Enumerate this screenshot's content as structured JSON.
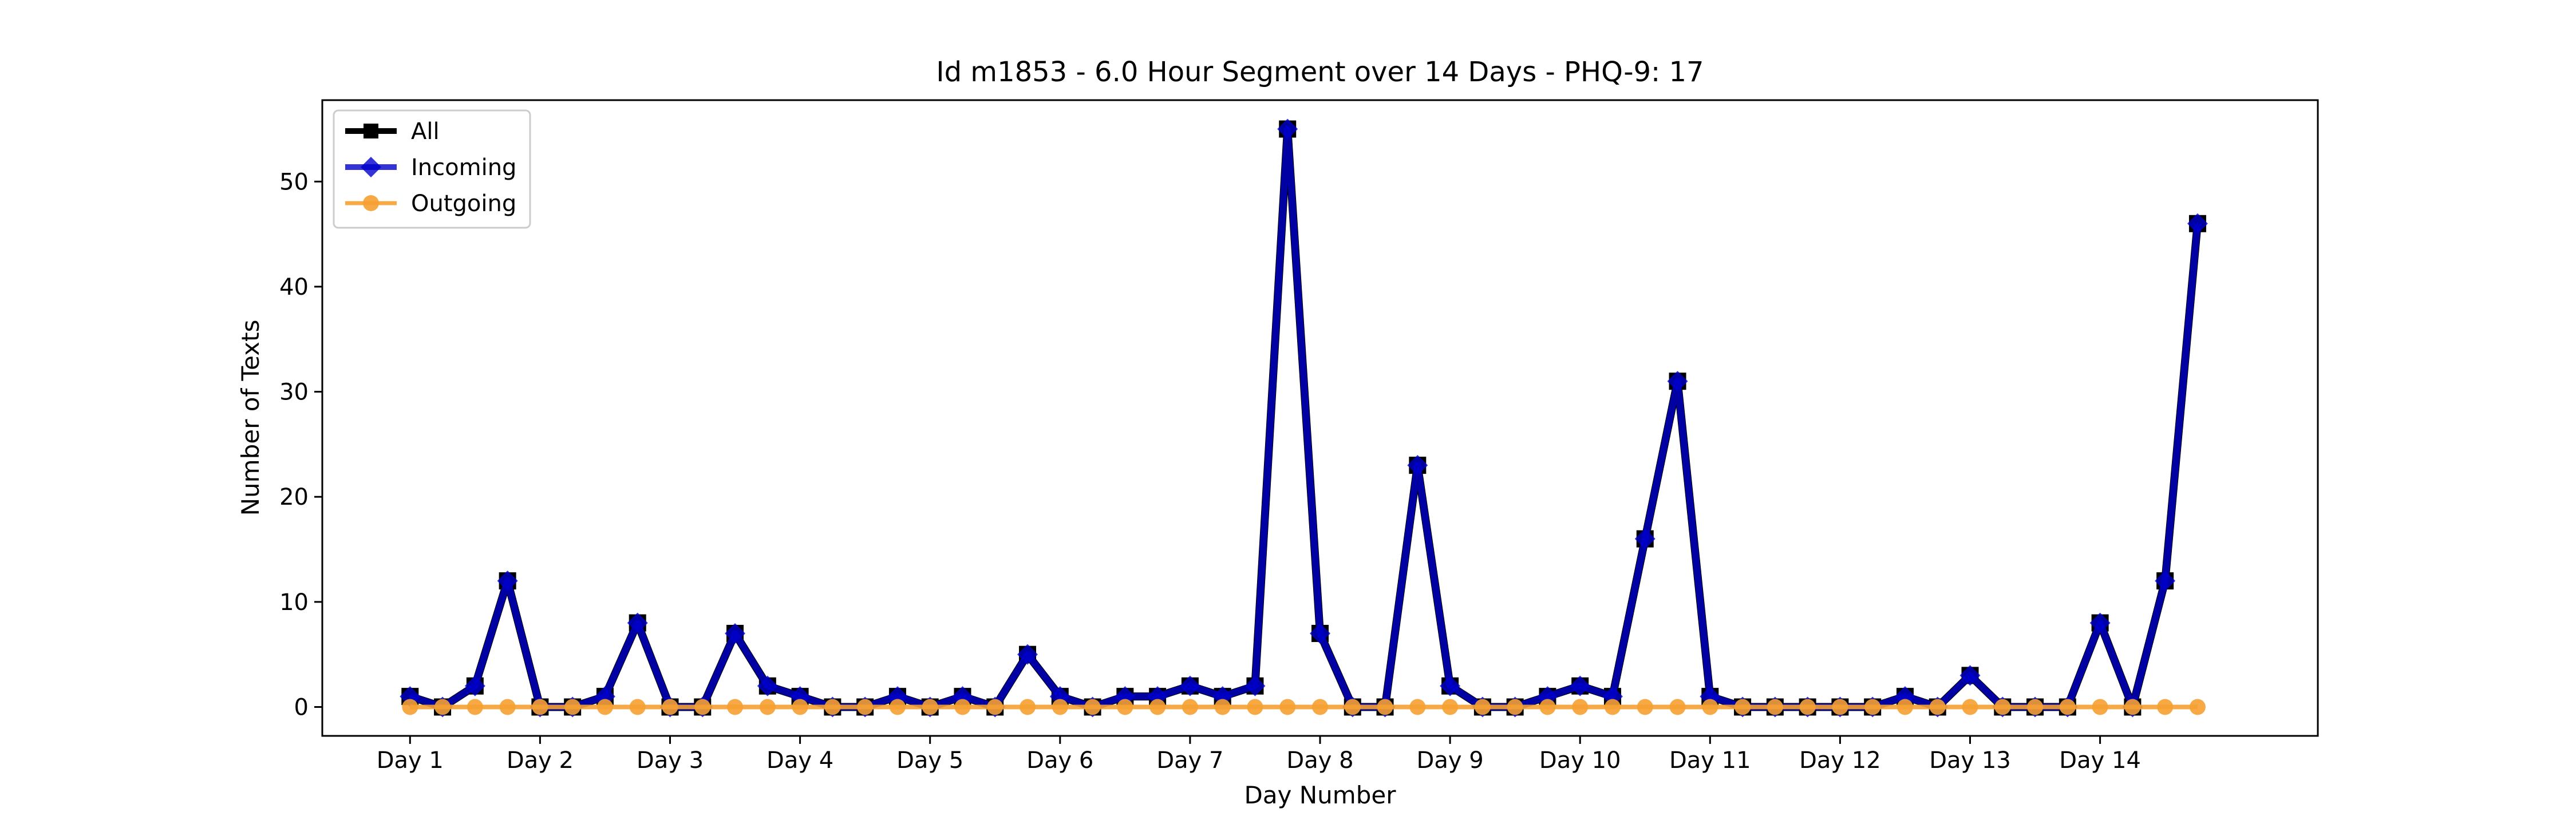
{
  "chart_data": {
    "type": "line",
    "title": "Id m1853 - 6.0 Hour Segment over 14 Days - PHQ-9: 17",
    "xlabel": "Day Number",
    "ylabel": "Number of Texts",
    "xlim": [
      0.325,
      15.675
    ],
    "ylim": [
      -2.75,
      57.75
    ],
    "yticks": [
      0,
      10,
      20,
      30,
      40,
      50
    ],
    "xticks": [
      {
        "value": 1,
        "label": "Day 1"
      },
      {
        "value": 2,
        "label": "Day 2"
      },
      {
        "value": 3,
        "label": "Day 3"
      },
      {
        "value": 4,
        "label": "Day 4"
      },
      {
        "value": 5,
        "label": "Day 5"
      },
      {
        "value": 6,
        "label": "Day 6"
      },
      {
        "value": 7,
        "label": "Day 7"
      },
      {
        "value": 8,
        "label": "Day 8"
      },
      {
        "value": 9,
        "label": "Day 9"
      },
      {
        "value": 10,
        "label": "Day 10"
      },
      {
        "value": 11,
        "label": "Day 11"
      },
      {
        "value": 12,
        "label": "Day 12"
      },
      {
        "value": 13,
        "label": "Day 13"
      },
      {
        "value": 14,
        "label": "Day 14"
      }
    ],
    "x": [
      1,
      1.25,
      1.5,
      1.75,
      2,
      2.25,
      2.5,
      2.75,
      3,
      3.25,
      3.5,
      3.75,
      4,
      4.25,
      4.5,
      4.75,
      5,
      5.25,
      5.5,
      5.75,
      6,
      6.25,
      6.5,
      6.75,
      7,
      7.25,
      7.5,
      7.75,
      8,
      8.25,
      8.5,
      8.75,
      9,
      9.25,
      9.5,
      9.75,
      10,
      10.25,
      10.5,
      10.75,
      11,
      11.25,
      11.5,
      11.75,
      12,
      12.25,
      12.5,
      12.75,
      13,
      13.25,
      13.5,
      13.75,
      14,
      14.25,
      14.5,
      14.75
    ],
    "series": [
      {
        "name": "All",
        "color": "#000000",
        "marker": "square",
        "values": [
          1,
          0,
          2,
          12,
          0,
          0,
          1,
          8,
          0,
          0,
          7,
          2,
          1,
          0,
          0,
          1,
          0,
          1,
          0,
          5,
          1,
          0,
          1,
          1,
          2,
          1,
          2,
          55,
          7,
          0,
          0,
          23,
          2,
          0,
          0,
          1,
          2,
          1,
          16,
          31,
          1,
          0,
          0,
          0,
          0,
          0,
          1,
          0,
          3,
          0,
          0,
          0,
          8,
          0,
          12,
          46
        ]
      },
      {
        "name": "Incoming",
        "color": "#0000cc",
        "marker": "diamond",
        "values": [
          1,
          0,
          2,
          12,
          0,
          0,
          1,
          8,
          0,
          0,
          7,
          2,
          1,
          0,
          0,
          1,
          0,
          1,
          0,
          5,
          1,
          0,
          1,
          1,
          2,
          1,
          2,
          55,
          7,
          0,
          0,
          23,
          2,
          0,
          0,
          1,
          2,
          1,
          16,
          31,
          1,
          0,
          0,
          0,
          0,
          0,
          1,
          0,
          3,
          0,
          0,
          0,
          8,
          0,
          12,
          46
        ]
      },
      {
        "name": "Outgoing",
        "color": "#f5a031",
        "marker": "circle",
        "values": [
          0,
          0,
          0,
          0,
          0,
          0,
          0,
          0,
          0,
          0,
          0,
          0,
          0,
          0,
          0,
          0,
          0,
          0,
          0,
          0,
          0,
          0,
          0,
          0,
          0,
          0,
          0,
          0,
          0,
          0,
          0,
          0,
          0,
          0,
          0,
          0,
          0,
          0,
          0,
          0,
          0,
          0,
          0,
          0,
          0,
          0,
          0,
          0,
          0,
          0,
          0,
          0,
          0,
          0,
          0,
          0
        ]
      }
    ],
    "legend_position": "upper-left",
    "grid": false
  }
}
